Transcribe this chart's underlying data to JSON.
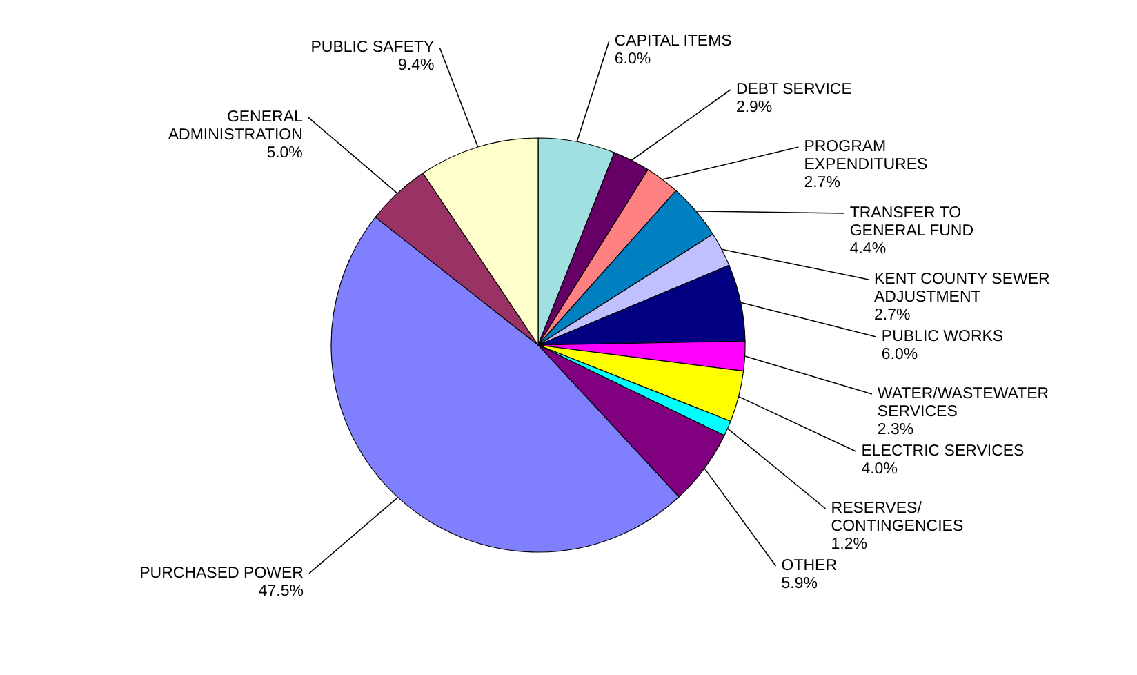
{
  "chart_data": {
    "type": "pie",
    "categories": [
      "CAPITAL ITEMS",
      "DEBT SERVICE",
      "PROGRAM EXPENDITURES",
      "TRANSFER TO GENERAL FUND",
      "KENT COUNTY SEWER ADJUSTMENT",
      "PUBLIC WORKS",
      "WATER/WASTEWATER SERVICES",
      "ELECTRIC SERVICES",
      "RESERVES/ CONTINGENCIES",
      "OTHER",
      "PURCHASED POWER",
      "GENERAL ADMINISTRATION",
      "PUBLIC SAFETY"
    ],
    "values": [
      6.0,
      2.9,
      2.7,
      4.4,
      2.7,
      6.0,
      2.3,
      4.0,
      1.2,
      5.9,
      47.5,
      5.0,
      9.4
    ],
    "value_labels": [
      "6.0%",
      "2.9%",
      "2.7%",
      "4.4%",
      "2.7%",
      "6.0%",
      "2.3%",
      "4.0%",
      "1.2%",
      "5.9%",
      "47.5%",
      "5.0%",
      "9.4%"
    ],
    "colors": [
      "#a0e0e0",
      "#660066",
      "#ff8080",
      "#0080c0",
      "#c0c0ff",
      "#000080",
      "#ff00ff",
      "#ffff00",
      "#00ffff",
      "#800080",
      "#8080ff",
      "#993366",
      "#ffffcc"
    ]
  }
}
